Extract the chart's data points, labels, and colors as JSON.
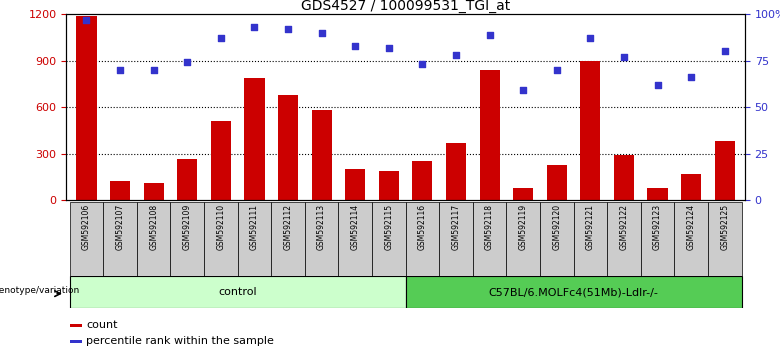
{
  "title": "GDS4527 / 100099531_TGI_at",
  "samples": [
    "GSM592106",
    "GSM592107",
    "GSM592108",
    "GSM592109",
    "GSM592110",
    "GSM592111",
    "GSM592112",
    "GSM592113",
    "GSM592114",
    "GSM592115",
    "GSM592116",
    "GSM592117",
    "GSM592118",
    "GSM592119",
    "GSM592120",
    "GSM592121",
    "GSM592122",
    "GSM592123",
    "GSM592124",
    "GSM592125"
  ],
  "counts": [
    1190,
    120,
    110,
    265,
    510,
    790,
    680,
    580,
    200,
    185,
    255,
    370,
    840,
    75,
    225,
    900,
    290,
    80,
    165,
    380
  ],
  "percentiles": [
    97,
    70,
    70,
    74,
    87,
    93,
    92,
    90,
    83,
    82,
    73,
    78,
    89,
    59,
    70,
    87,
    77,
    62,
    66,
    80
  ],
  "group1_label": "control",
  "group1_count": 10,
  "group2_label": "C57BL/6.MOLFc4(51Mb)-Ldlr-/-",
  "group2_count": 10,
  "bar_color": "#cc0000",
  "dot_color": "#3333cc",
  "group1_bg": "#ccffcc",
  "group2_bg": "#55cc55",
  "tick_bg": "#cccccc",
  "left_ytick_color": "#cc0000",
  "right_ytick_color": "#3333cc",
  "ylim_left": [
    0,
    1200
  ],
  "ylim_right": [
    0,
    100
  ],
  "yticks_left": [
    0,
    300,
    600,
    900,
    1200
  ],
  "yticks_right": [
    0,
    25,
    50,
    75,
    100
  ],
  "ytick_labels_right": [
    "0",
    "25",
    "50",
    "75",
    "100%"
  ],
  "legend_count_label": "count",
  "legend_pct_label": "percentile rank within the sample",
  "genotype_label": "genotype/variation"
}
